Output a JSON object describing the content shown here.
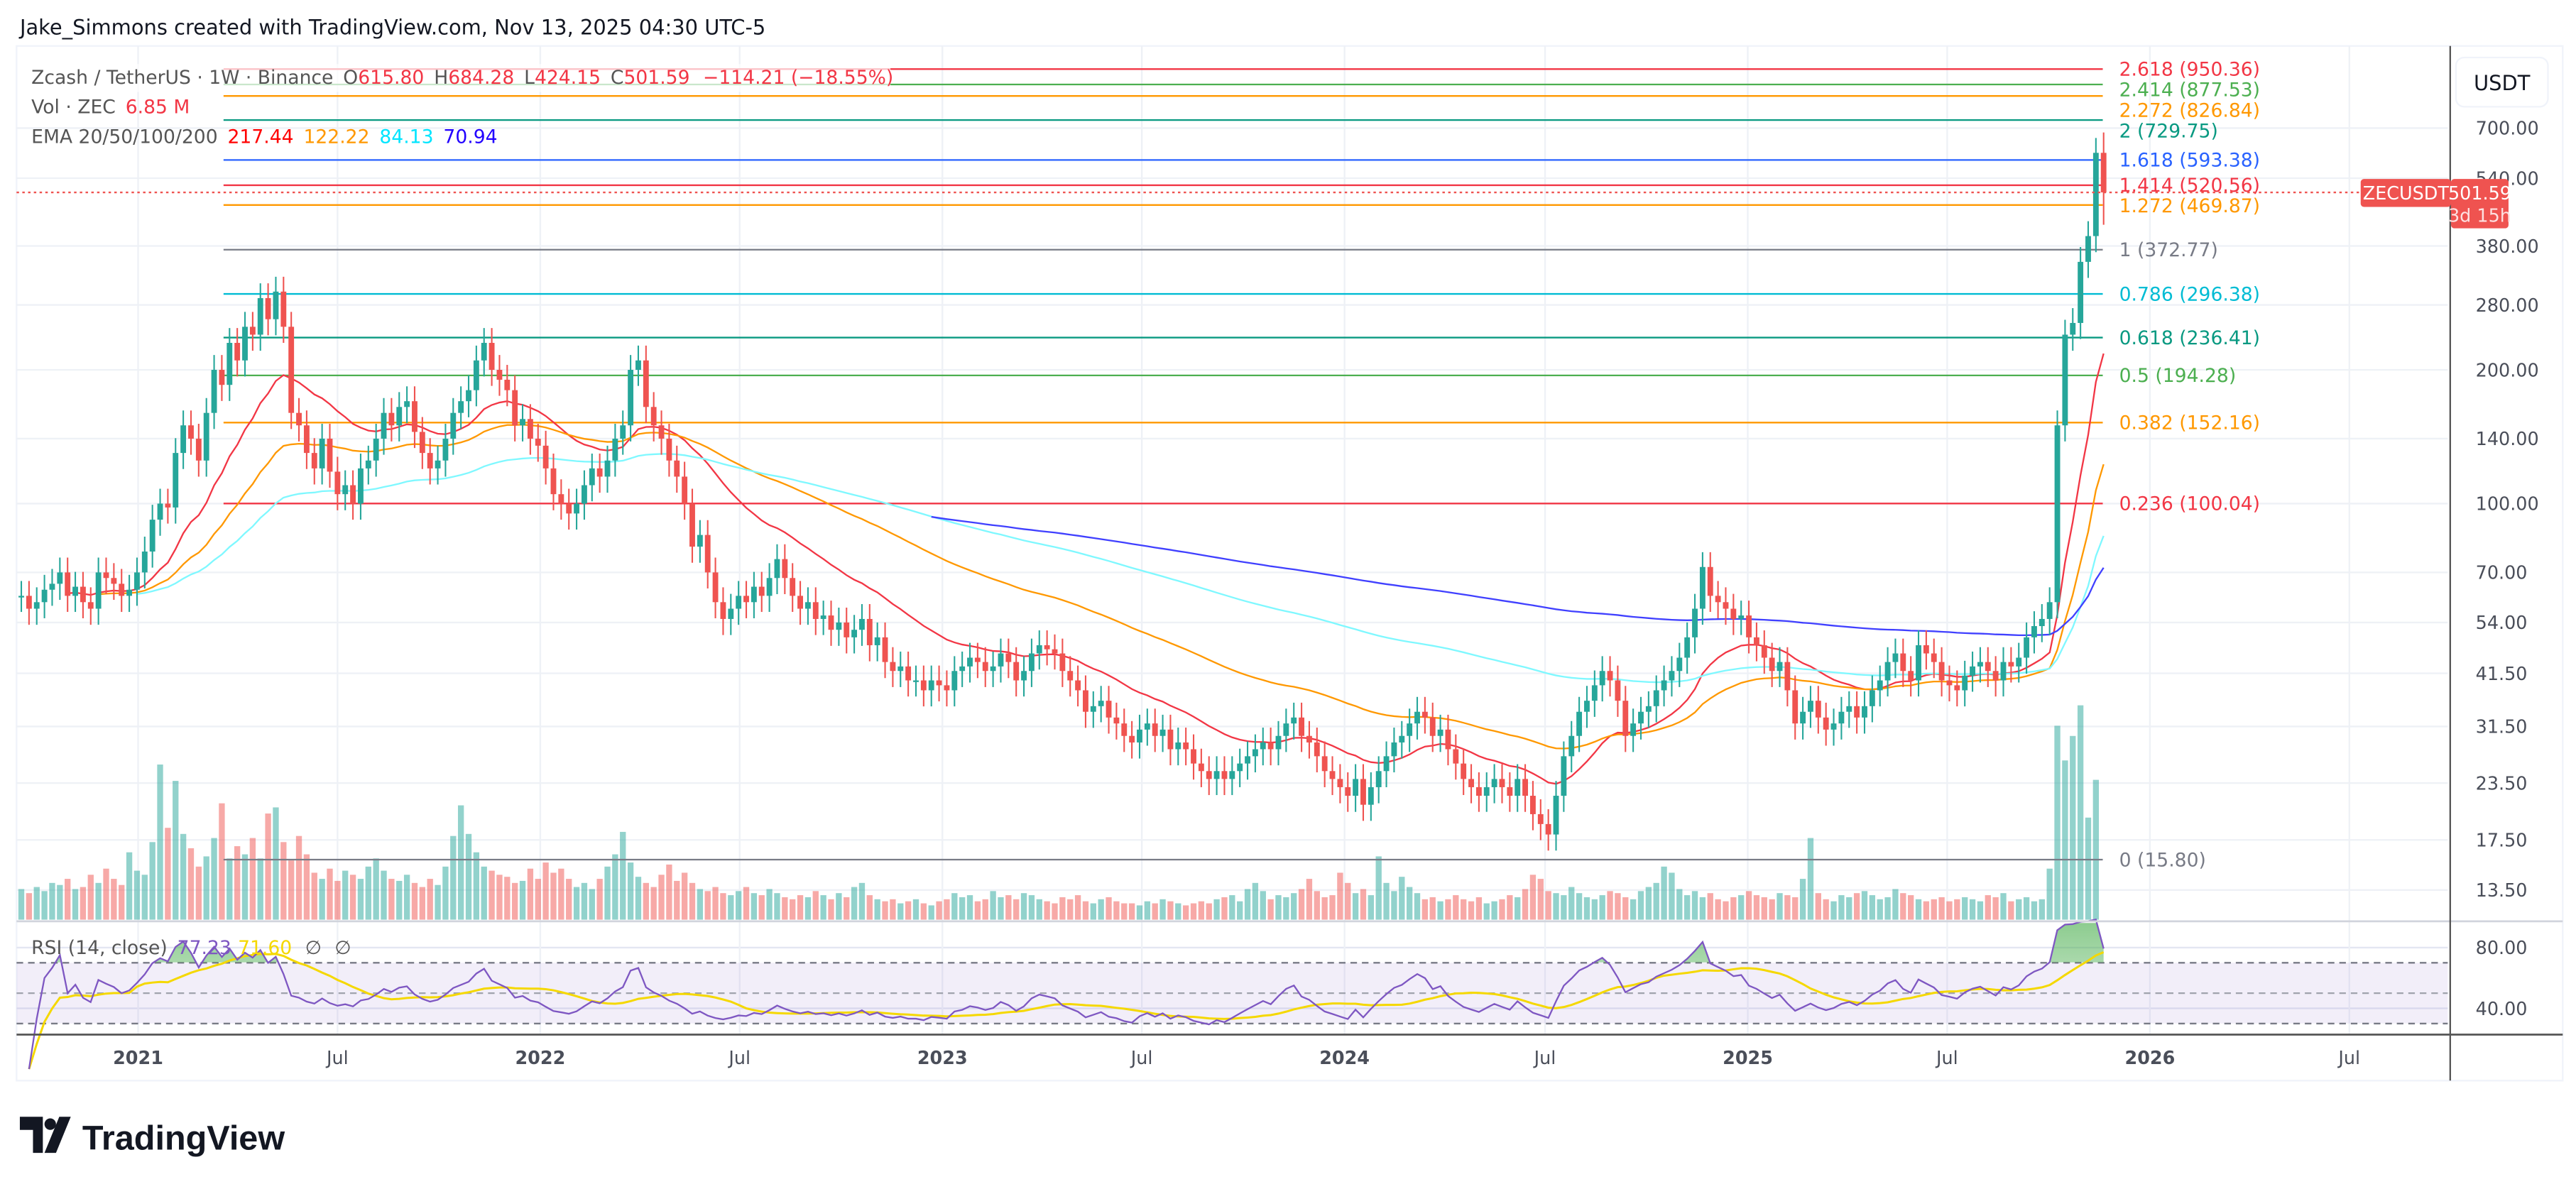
{
  "header": {
    "credit": "Jake_Simmons created with TradingView.com, Nov 13, 2025 04:30 UTC-5"
  },
  "legend": {
    "symbol": "Zcash / TetherUS · 1W · Binance",
    "o_label": "O",
    "open": "615.80",
    "h_label": "H",
    "high": "684.28",
    "l_label": "L",
    "low": "424.15",
    "c_label": "C",
    "close": "501.59",
    "change": "−114.21 (−18.55%)",
    "vol_label": "Vol · ZEC",
    "vol_value": "6.85 M",
    "ema_label": "EMA 20/50/100/200",
    "ema_values": [
      "217.44",
      "122.22",
      "84.13",
      "70.94"
    ],
    "ema_colors": [
      "#ff0000",
      "#ff9800",
      "#00e5ff",
      "#2200ff"
    ],
    "rsi_label": "RSI (14, close)",
    "rsi_value": "77.23",
    "rsi_ma_value": "71.60",
    "rsi_extra": [
      "∅",
      "∅"
    ]
  },
  "price_axis": {
    "currency": "USDT",
    "labels": [
      "700.00",
      "540.00",
      "380.00",
      "280.00",
      "200.00",
      "140.00",
      "100.00",
      "70.00",
      "54.00",
      "41.50",
      "31.50",
      "23.50",
      "17.50",
      "13.50"
    ],
    "scale": "log"
  },
  "rsi_axis": {
    "labels": [
      "80.00",
      "40.00"
    ]
  },
  "price_tag": {
    "symbol": "ZECUSDT",
    "price": "501.59",
    "countdown": "3d 15h",
    "color": "#ef5350"
  },
  "time_axis": {
    "labels": [
      {
        "text": "2021",
        "date": "2021-01-01",
        "bold": true
      },
      {
        "text": "Jul",
        "date": "2021-07-01"
      },
      {
        "text": "2022",
        "date": "2022-01-01",
        "bold": true
      },
      {
        "text": "Jul",
        "date": "2022-07-01"
      },
      {
        "text": "2023",
        "date": "2023-01-01",
        "bold": true
      },
      {
        "text": "Jul",
        "date": "2023-07-01"
      },
      {
        "text": "2024",
        "date": "2024-01-01",
        "bold": true
      },
      {
        "text": "Jul",
        "date": "2024-07-01"
      },
      {
        "text": "2025",
        "date": "2025-01-01",
        "bold": true
      },
      {
        "text": "Jul",
        "date": "2025-07-01"
      },
      {
        "text": "2026",
        "date": "2026-01-01",
        "bold": true
      },
      {
        "text": "Jul",
        "date": "2026-07-01"
      }
    ]
  },
  "fib_levels": [
    {
      "label": "2.618 (950.36)",
      "price": 950.36,
      "color": "#f23645"
    },
    {
      "label": "2.414 (877.53)",
      "price": 877.53,
      "color": "#4caf50"
    },
    {
      "label": "2.272 (826.84)",
      "price": 826.84,
      "color": "#ff9800"
    },
    {
      "label": "2 (729.75)",
      "price": 729.75,
      "color": "#089981"
    },
    {
      "label": "1.618 (593.38)",
      "price": 593.38,
      "color": "#2962ff"
    },
    {
      "label": "1.414 (520.56)",
      "price": 520.56,
      "color": "#f23645"
    },
    {
      "label": "1.272 (469.87)",
      "price": 469.87,
      "color": "#ff9800"
    },
    {
      "label": "1 (372.77)",
      "price": 372.77,
      "color": "#787b86"
    },
    {
      "label": "0.786 (296.38)",
      "price": 296.38,
      "color": "#00bcd4"
    },
    {
      "label": "0.618 (236.41)",
      "price": 236.41,
      "color": "#089981"
    },
    {
      "label": "0.5 (194.28)",
      "price": 194.28,
      "color": "#4caf50"
    },
    {
      "label": "0.382 (152.16)",
      "price": 152.16,
      "color": "#ff9800"
    },
    {
      "label": "0.236 (100.04)",
      "price": 100.04,
      "color": "#f23645"
    },
    {
      "label": "0 (15.80)",
      "price": 15.8,
      "color": "#787b86"
    }
  ],
  "chart_data": {
    "type": "candlestick",
    "interval": "1W",
    "start_date": "2020-09-14",
    "y_scale": "log",
    "ylim": [
      12,
      1000
    ],
    "up_color": "#26a69a",
    "down_color": "#ef5350",
    "last_candle": {
      "open": 615.8,
      "high": 684.28,
      "low": 424.15,
      "close": 501.59
    },
    "closes": [
      62,
      58,
      60,
      64,
      66,
      70,
      62,
      65,
      60,
      58,
      70,
      68,
      66,
      62,
      64,
      70,
      78,
      92,
      100,
      98,
      130,
      150,
      140,
      125,
      160,
      200,
      185,
      230,
      210,
      250,
      240,
      290,
      260,
      300,
      250,
      160,
      150,
      130,
      120,
      140,
      118,
      105,
      110,
      100,
      120,
      125,
      140,
      160,
      150,
      165,
      170,
      145,
      130,
      120,
      125,
      140,
      160,
      170,
      180,
      210,
      230,
      200,
      190,
      180,
      150,
      155,
      140,
      135,
      120,
      105,
      100,
      95,
      100,
      110,
      120,
      115,
      125,
      140,
      150,
      200,
      210,
      165,
      150,
      140,
      125,
      115,
      100,
      80,
      85,
      70,
      60,
      55,
      58,
      62,
      60,
      65,
      62,
      68,
      75,
      68,
      62,
      58,
      60,
      55,
      56,
      52,
      54,
      50,
      52,
      55,
      48,
      50,
      44,
      42,
      43,
      40,
      40,
      38,
      40,
      39,
      38,
      42,
      43,
      45,
      44,
      42,
      43,
      46,
      44,
      40,
      42,
      46,
      48,
      47,
      46,
      42,
      40,
      38,
      34,
      35,
      36,
      33,
      32,
      30,
      29,
      31,
      32,
      30,
      31,
      28,
      29,
      28,
      26,
      25,
      24,
      25,
      24,
      25,
      26,
      27,
      28,
      29,
      28,
      30,
      32,
      33,
      30,
      29,
      27,
      25,
      24,
      23,
      22,
      24,
      21,
      23,
      25,
      27,
      29,
      30,
      32,
      34,
      33,
      30,
      31,
      28,
      26,
      24,
      23,
      22,
      23,
      24,
      23,
      22,
      24,
      22,
      20,
      19,
      18,
      22,
      27,
      30,
      34,
      36,
      39,
      42,
      40,
      36,
      30,
      32,
      34,
      35,
      38,
      40,
      42,
      45,
      50,
      58,
      72,
      62,
      60,
      58,
      55,
      56,
      50,
      48,
      45,
      42,
      44,
      38,
      32,
      34,
      36,
      33,
      31,
      32,
      34,
      35,
      33,
      35,
      38,
      40,
      44,
      46,
      42,
      40,
      48,
      46,
      44,
      40,
      39,
      38,
      41,
      43,
      44,
      42,
      40,
      44,
      43,
      45,
      50,
      53,
      55,
      60,
      150,
      240,
      255,
      350,
      400,
      615.8,
      501.59
    ],
    "volumes_m": [
      1.5,
      1.3,
      1.6,
      1.4,
      1.8,
      1.7,
      2.0,
      1.5,
      1.6,
      2.2,
      1.8,
      2.5,
      2.0,
      1.7,
      3.3,
      2.4,
      2.2,
      3.8,
      7.6,
      4.5,
      6.8,
      4.2,
      3.5,
      2.6,
      3.1,
      4.0,
      5.7,
      3.0,
      3.6,
      3.2,
      4.0,
      3.0,
      5.2,
      5.5,
      3.8,
      2.9,
      4.1,
      3.2,
      2.3,
      2.0,
      2.5,
      1.9,
      2.4,
      2.2,
      2.0,
      2.6,
      3.0,
      2.4,
      2.0,
      1.9,
      2.2,
      1.8,
      1.6,
      2.0,
      1.7,
      2.6,
      4.1,
      5.6,
      4.2,
      3.3,
      2.6,
      2.4,
      2.2,
      2.1,
      1.8,
      1.9,
      2.5,
      2.0,
      2.8,
      2.3,
      2.5,
      2.0,
      1.6,
      1.8,
      1.5,
      2.0,
      2.6,
      3.2,
      4.3,
      2.8,
      2.1,
      1.8,
      1.6,
      2.2,
      2.7,
      1.9,
      2.3,
      1.8,
      1.5,
      1.4,
      1.6,
      1.3,
      1.2,
      1.4,
      1.6,
      1.3,
      1.2,
      1.5,
      1.3,
      1.1,
      1.0,
      1.2,
      1.1,
      1.4,
      1.2,
      1.0,
      1.3,
      1.1,
      1.6,
      1.8,
      1.2,
      1.0,
      0.9,
      1.0,
      0.8,
      0.9,
      1.0,
      0.8,
      0.7,
      0.9,
      1.0,
      1.3,
      1.1,
      1.2,
      0.9,
      1.0,
      1.4,
      1.1,
      1.2,
      1.0,
      1.3,
      1.2,
      1.0,
      0.9,
      0.8,
      1.1,
      1.0,
      1.2,
      0.9,
      0.8,
      1.0,
      1.1,
      0.9,
      0.8,
      0.8,
      0.7,
      0.9,
      0.8,
      1.0,
      0.9,
      0.8,
      0.7,
      0.8,
      0.9,
      0.8,
      1.0,
      1.1,
      1.2,
      0.9,
      1.5,
      1.8,
      1.4,
      1.0,
      1.2,
      1.1,
      1.3,
      1.5,
      2.0,
      1.4,
      1.1,
      1.2,
      2.3,
      1.8,
      1.3,
      1.5,
      1.2,
      3.1,
      1.8,
      1.4,
      2.1,
      1.6,
      1.3,
      1.0,
      1.1,
      0.9,
      1.0,
      1.2,
      1.0,
      0.9,
      1.1,
      0.8,
      0.9,
      1.0,
      1.2,
      1.1,
      1.5,
      2.2,
      2.0,
      1.4,
      1.3,
      1.2,
      1.6,
      1.3,
      1.1,
      1.0,
      1.2,
      1.4,
      1.3,
      1.1,
      1.0,
      1.4,
      1.6,
      1.8,
      2.6,
      2.3,
      1.5,
      1.2,
      1.4,
      1.1,
      1.3,
      1.0,
      0.9,
      1.1,
      1.2,
      1.4,
      1.2,
      1.1,
      1.0,
      1.3,
      1.2,
      1.1,
      2.0,
      4.0,
      1.3,
      1.0,
      0.9,
      1.2,
      1.1,
      1.3,
      1.4,
      1.2,
      1.0,
      1.1,
      1.5,
      1.3,
      1.2,
      1.0,
      0.9,
      1.0,
      1.1,
      0.9,
      1.0,
      1.1,
      1.0,
      0.9,
      1.2,
      1.1,
      1.3,
      0.9,
      1.0,
      1.1,
      0.9,
      1.0,
      2.5,
      9.5,
      7.8,
      9.0,
      10.5,
      5.0,
      6.85
    ],
    "indicators": [
      "EMA 20",
      "EMA 50",
      "EMA 100",
      "EMA 200",
      "RSI 14",
      "RSI MA"
    ],
    "rsi_levels": [
      70,
      50,
      30
    ]
  },
  "branding": {
    "logo_text": "TradingView"
  }
}
